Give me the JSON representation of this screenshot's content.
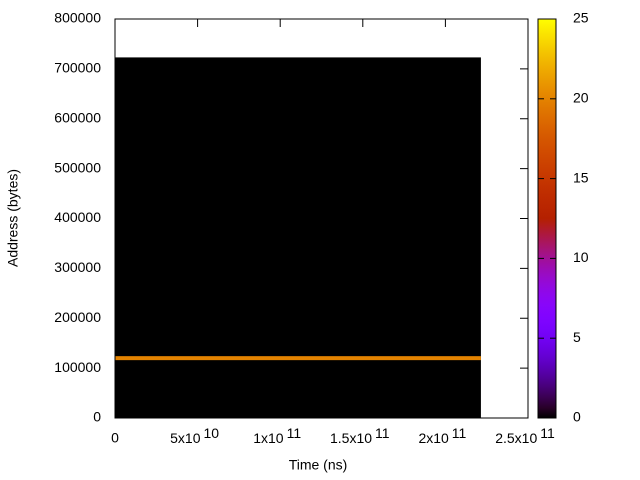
{
  "chart_data": {
    "type": "heatmap",
    "xlabel": "Time (ns)",
    "ylabel": "Address (bytes)",
    "xlim": [
      0,
      250000000000
    ],
    "xticks": [
      0,
      {
        "value": 50000000000,
        "label": "5x10",
        "exponent": "10"
      },
      {
        "value": 100000000000,
        "label": "1x10",
        "exponent": "11"
      },
      {
        "value": 150000000000,
        "label": "1.5x10",
        "exponent": "11"
      },
      {
        "value": 200000000000,
        "label": "2x10",
        "exponent": "11"
      },
      {
        "value": 250000000000,
        "label": "2.5x10",
        "exponent": "11"
      }
    ],
    "ylim": [
      0,
      800000
    ],
    "yticks": [
      0,
      100000,
      200000,
      300000,
      400000,
      500000,
      600000,
      700000,
      800000
    ],
    "cblim": [
      0,
      25
    ],
    "cbticks": [
      0,
      5,
      10,
      15,
      20,
      25
    ],
    "palette": "rgbformulae 7,5,15",
    "regions": [
      {
        "xrange": [
          0,
          221500000000
        ],
        "yrange": [
          0,
          723000
        ],
        "value": 0
      },
      {
        "xrange": [
          0,
          221500000000
        ],
        "yrange": [
          116000,
          124000
        ],
        "value": 20
      }
    ]
  }
}
